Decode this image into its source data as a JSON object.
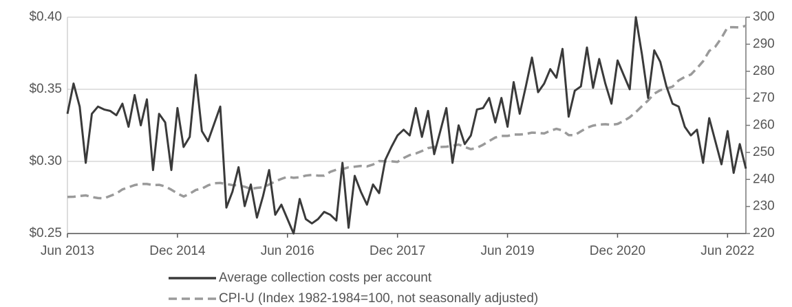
{
  "chart_data": {
    "type": "line",
    "categories": [
      "Jun 2013",
      null,
      null,
      null,
      null,
      null,
      null,
      null,
      null,
      null,
      null,
      null,
      null,
      null,
      null,
      null,
      null,
      null,
      "Dec 2014",
      null,
      null,
      null,
      null,
      null,
      null,
      null,
      null,
      null,
      null,
      null,
      null,
      null,
      null,
      null,
      null,
      null,
      "Jun 2016",
      null,
      null,
      null,
      null,
      null,
      null,
      null,
      null,
      null,
      null,
      null,
      null,
      null,
      null,
      null,
      null,
      null,
      "Dec 2017",
      null,
      null,
      null,
      null,
      null,
      null,
      null,
      null,
      null,
      null,
      null,
      null,
      null,
      null,
      null,
      null,
      null,
      "Jun 2019",
      null,
      null,
      null,
      null,
      null,
      null,
      null,
      null,
      null,
      null,
      null,
      null,
      null,
      null,
      null,
      null,
      null,
      "Dec 2020",
      null,
      null,
      null,
      null,
      null,
      null,
      null,
      null,
      null,
      null,
      null,
      null,
      null,
      null,
      null,
      null,
      null,
      "Jun 2022",
      null,
      null,
      null
    ],
    "series": [
      {
        "name": "Average collection costs per account",
        "color": "#3a3a3a",
        "line_style": "solid",
        "axis": "y",
        "values": [
          0.333,
          0.354,
          0.338,
          0.299,
          0.333,
          0.338,
          0.336,
          0.335,
          0.332,
          0.34,
          0.324,
          0.346,
          0.325,
          0.343,
          0.294,
          0.333,
          0.327,
          0.294,
          0.337,
          0.31,
          0.317,
          0.36,
          0.321,
          0.314,
          0.326,
          0.338,
          0.268,
          0.279,
          0.296,
          0.269,
          0.284,
          0.261,
          0.276,
          0.294,
          0.263,
          0.27,
          0.26,
          0.25,
          0.274,
          0.26,
          0.257,
          0.26,
          0.265,
          0.263,
          0.259,
          0.299,
          0.254,
          0.29,
          0.279,
          0.27,
          0.284,
          0.278,
          0.301,
          0.31,
          0.318,
          0.322,
          0.318,
          0.337,
          0.317,
          0.335,
          0.305,
          0.321,
          0.337,
          0.299,
          0.325,
          0.312,
          0.318,
          0.336,
          0.337,
          0.344,
          0.327,
          0.344,
          0.324,
          0.355,
          0.333,
          0.352,
          0.372,
          0.348,
          0.354,
          0.364,
          0.358,
          0.378,
          0.331,
          0.349,
          0.352,
          0.379,
          0.351,
          0.371,
          0.354,
          0.34,
          0.37,
          0.36,
          0.35,
          0.4,
          0.374,
          0.344,
          0.377,
          0.369,
          0.352,
          0.34,
          0.338,
          0.324,
          0.318,
          0.322,
          0.299,
          0.33,
          0.314,
          0.298,
          0.321,
          0.292,
          0.312,
          0.295
        ]
      },
      {
        "name": "CPI-U (Index 1982-1984=100, not seasonally adjusted)",
        "color": "#9a9a9a",
        "line_style": "dashed",
        "axis": "y2",
        "values": [
          233.5,
          233.6,
          233.9,
          234.1,
          233.5,
          233.1,
          233.0,
          233.9,
          234.8,
          236.3,
          237.1,
          237.9,
          238.3,
          238.3,
          237.9,
          238.0,
          237.4,
          236.2,
          234.8,
          233.7,
          234.7,
          236.1,
          236.6,
          237.8,
          238.6,
          238.7,
          238.3,
          237.9,
          237.8,
          237.3,
          236.5,
          236.9,
          237.1,
          238.1,
          239.3,
          240.2,
          241.0,
          240.6,
          240.8,
          241.4,
          241.7,
          241.4,
          241.4,
          242.8,
          243.6,
          243.8,
          244.5,
          244.7,
          245.0,
          244.8,
          245.5,
          246.8,
          246.7,
          246.7,
          246.5,
          247.9,
          249.0,
          249.6,
          250.5,
          251.6,
          252.0,
          252.0,
          252.1,
          252.4,
          252.9,
          252.0,
          251.2,
          251.7,
          252.8,
          254.2,
          255.5,
          256.1,
          256.1,
          256.6,
          256.6,
          256.8,
          257.3,
          257.2,
          257.0,
          258.0,
          258.7,
          258.1,
          256.4,
          256.4,
          257.8,
          259.1,
          259.9,
          260.3,
          260.4,
          260.2,
          260.5,
          261.6,
          263.0,
          264.9,
          267.1,
          269.2,
          271.7,
          273.0,
          273.6,
          274.3,
          276.6,
          277.9,
          278.8,
          281.1,
          283.7,
          287.5,
          289.1,
          292.3,
          296.3,
          296.3,
          296.2,
          296.8
        ]
      }
    ],
    "ylim": [
      0.25,
      0.4
    ],
    "yticks": [
      {
        "value": 0.25,
        "label": "$0.25"
      },
      {
        "value": 0.3,
        "label": "$0.30"
      },
      {
        "value": 0.35,
        "label": "$0.35"
      },
      {
        "value": 0.4,
        "label": "$0.40"
      }
    ],
    "y2lim": [
      220,
      300
    ],
    "y2ticks": [
      220,
      230,
      240,
      250,
      260,
      270,
      280,
      290,
      300
    ],
    "grid": true,
    "legend": "bottom"
  }
}
